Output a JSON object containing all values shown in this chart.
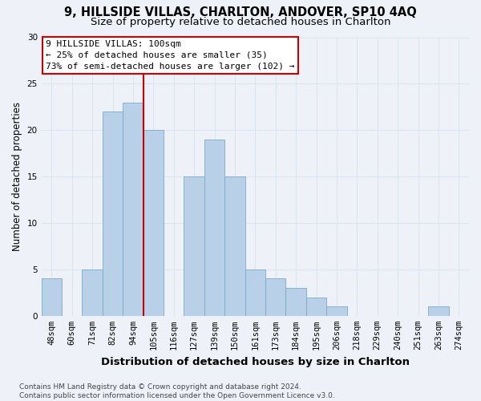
{
  "title": "9, HILLSIDE VILLAS, CHARLTON, ANDOVER, SP10 4AQ",
  "subtitle": "Size of property relative to detached houses in Charlton",
  "xlabel": "Distribution of detached houses by size in Charlton",
  "ylabel": "Number of detached properties",
  "categories": [
    "48sqm",
    "60sqm",
    "71sqm",
    "82sqm",
    "94sqm",
    "105sqm",
    "116sqm",
    "127sqm",
    "139sqm",
    "150sqm",
    "161sqm",
    "173sqm",
    "184sqm",
    "195sqm",
    "206sqm",
    "218sqm",
    "229sqm",
    "240sqm",
    "251sqm",
    "263sqm",
    "274sqm"
  ],
  "values": [
    4,
    0,
    5,
    22,
    23,
    20,
    0,
    15,
    19,
    15,
    5,
    4,
    3,
    2,
    1,
    0,
    0,
    0,
    0,
    1,
    0
  ],
  "bar_color": "#b8d0e8",
  "bar_edge_color": "#7aaac8",
  "grid_color": "#d8e4f0",
  "background_color": "#eef2f8",
  "annotation_text": "9 HILLSIDE VILLAS: 100sqm\n← 25% of detached houses are smaller (35)\n73% of semi-detached houses are larger (102) →",
  "annotation_box_color": "#ffffff",
  "annotation_box_edge_color": "#cc0000",
  "vline_color": "#cc0000",
  "vline_x_index": 4.5,
  "ylim": [
    0,
    30
  ],
  "yticks": [
    0,
    5,
    10,
    15,
    20,
    25,
    30
  ],
  "footnote": "Contains HM Land Registry data © Crown copyright and database right 2024.\nContains public sector information licensed under the Open Government Licence v3.0.",
  "title_fontsize": 10.5,
  "subtitle_fontsize": 9.5,
  "xlabel_fontsize": 9.5,
  "ylabel_fontsize": 8.5,
  "tick_fontsize": 7.5,
  "annotation_fontsize": 8,
  "footnote_fontsize": 6.5
}
